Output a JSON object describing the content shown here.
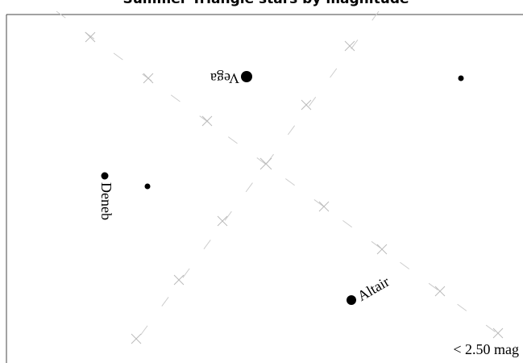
{
  "title": "Summer Triangle stars by magnitude",
  "stars": [
    {
      "label": "Vega"
    },
    {
      "label": "Deneb"
    },
    {
      "label": "Altair"
    }
  ],
  "legend": "< 2.50 mag"
}
